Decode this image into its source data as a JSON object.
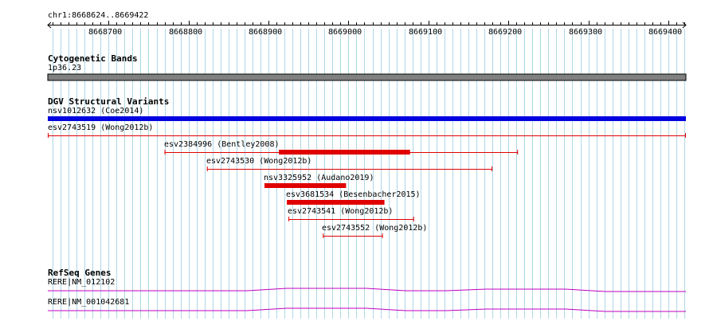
{
  "ruler": {
    "region_label": "chr1:8668624..8669422",
    "ticks": [
      "8668700",
      "8668800",
      "8668900",
      "8669000",
      "8669100",
      "8669200",
      "8669300",
      "8669400"
    ]
  },
  "cytoband": {
    "title": "Cytogenetic Bands",
    "band_label": "1p36.23",
    "band_color": "#808080"
  },
  "dgv": {
    "title": "DGV Structural Variants",
    "variants": [
      {
        "label": "nsv1012632 (Coe2014)",
        "start": 8668624,
        "end": 8669422,
        "kind": "thick",
        "color": "#0000e0"
      },
      {
        "label": "esv2743519 (Wong2012b)",
        "start": 8668624,
        "end": 8669422,
        "kind": "range",
        "color": "#e00000"
      },
      {
        "label": "esv2384996 (Bentley2008)",
        "start": 8668770,
        "end": 8669212,
        "thick_start": 8668913,
        "thick_end": 8669077,
        "kind": "mixed",
        "color": "#e00000"
      },
      {
        "label": "esv2743530 (Wong2012b)",
        "start": 8668823,
        "end": 8669180,
        "kind": "range",
        "color": "#e00000"
      },
      {
        "label": "nsv3325952 (Audano2019)",
        "start": 8668895,
        "end": 8668997,
        "kind": "thick",
        "color": "#e00000"
      },
      {
        "label": "esv3681534 (Besenbacher2015)",
        "start": 8668923,
        "end": 8669045,
        "kind": "thick",
        "color": "#e00000"
      },
      {
        "label": "esv2743541 (Wong2012b)",
        "start": 8668925,
        "end": 8669082,
        "kind": "range",
        "color": "#e00000"
      },
      {
        "label": "esv2743552 (Wong2012b)",
        "start": 8668968,
        "end": 8669043,
        "kind": "range",
        "color": "#e00000"
      }
    ]
  },
  "refseq": {
    "title": "RefSeq Genes",
    "genes": [
      {
        "label": "RERE|NM_012102",
        "color": "#c000c0"
      },
      {
        "label": "RERE|NM_001042681",
        "color": "#c000c0"
      }
    ]
  },
  "colors": {
    "grid_line": "#add8e6",
    "ruler": "#000000"
  }
}
